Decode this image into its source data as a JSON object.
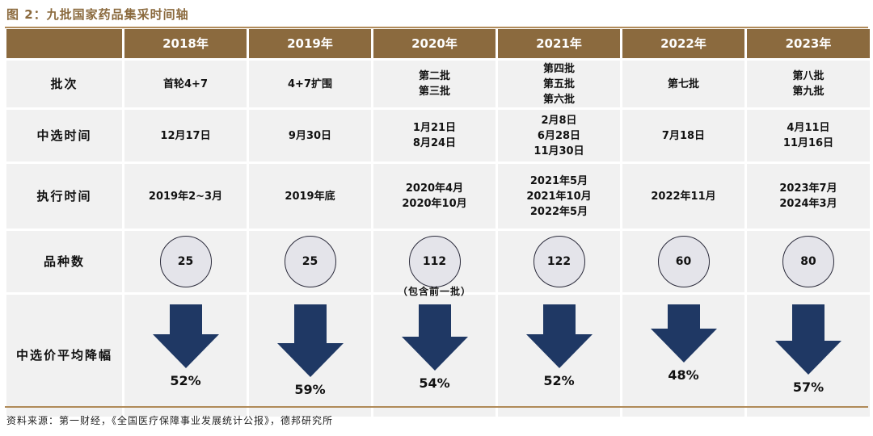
{
  "figure_title": "图 2：九批国家药品集采时间轴",
  "years": [
    "2018年",
    "2019年",
    "2020年",
    "2021年",
    "2022年",
    "2023年"
  ],
  "row_labels": {
    "batch": "批次",
    "selection_time": "中选时间",
    "execution_time": "执行时间",
    "variety_count": "品种数",
    "price_drop": "中选价平均降幅"
  },
  "batch": [
    "首轮4+7",
    "4+7扩围",
    "第二批\n第三批",
    "第四批\n第五批\n第六批",
    "第七批",
    "第八批\n第九批"
  ],
  "selection_time": [
    "12月17日",
    "9月30日",
    "1月21日\n8月24日",
    "2月8日\n6月28日\n11月30日",
    "7月18日",
    "4月11日\n11月16日"
  ],
  "execution_time": [
    "2019年2~3月",
    "2019年底",
    "2020年4月\n2020年10月",
    "2021年5月\n2021年10月\n2022年5月",
    "2022年11月",
    "2023年7月\n2024年3月"
  ],
  "variety_count": [
    "25",
    "25",
    "112",
    "122",
    "60",
    "80"
  ],
  "variety_note": "（包含前一批）",
  "price_drop": [
    52,
    59,
    54,
    52,
    48,
    57
  ],
  "price_drop_labels": [
    "52%",
    "59%",
    "54%",
    "52%",
    "48%",
    "57%"
  ],
  "source": "资料来源：第一财经，《全国医疗保障事业发展统计公报》，德邦研究所",
  "colors": {
    "header": "#8b6a3e",
    "cell": "#f1f1f1",
    "arrow": "#1f3864",
    "circle_fill": "#e4e4ea"
  }
}
